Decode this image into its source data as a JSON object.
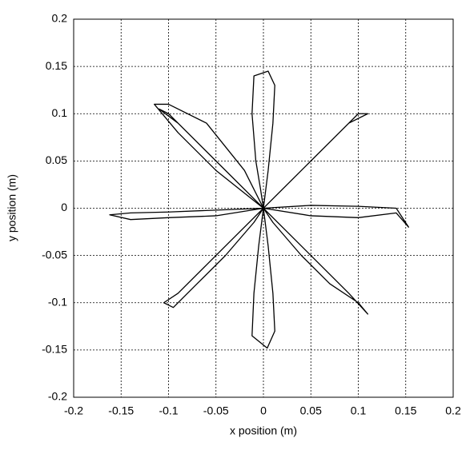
{
  "chart_data": {
    "type": "line",
    "xlabel": "x position (m)",
    "ylabel": "y position (m)",
    "xlim": [
      -0.2,
      0.2
    ],
    "ylim": [
      -0.2,
      0.2
    ],
    "xticks": [
      -0.2,
      -0.15,
      -0.1,
      -0.05,
      0,
      0.05,
      0.1,
      0.15,
      0.2
    ],
    "yticks": [
      -0.2,
      -0.15,
      -0.1,
      -0.05,
      0,
      0.05,
      0.1,
      0.15,
      0.2
    ],
    "grid": true,
    "series": [
      {
        "color": "#000000",
        "x": [
          0,
          0.005,
          0.01,
          0.012,
          0.005,
          -0.01,
          -0.012,
          -0.008,
          -0.003,
          0
        ],
        "values": [
          0,
          0.04,
          0.09,
          0.13,
          0.145,
          0.14,
          0.1,
          0.05,
          0.02,
          0
        ]
      },
      {
        "color": "#000000",
        "x": [
          0,
          0.03,
          0.06,
          0.09,
          0.11,
          0.1,
          0.08,
          0.05,
          0.02,
          0
        ],
        "values": [
          0,
          0.03,
          0.06,
          0.09,
          0.1,
          0.1,
          0.08,
          0.05,
          0.02,
          0
        ]
      },
      {
        "color": "#000000",
        "x": [
          0,
          0.05,
          0.1,
          0.14,
          0.153,
          0.14,
          0.1,
          0.05,
          0
        ],
        "values": [
          0,
          0.003,
          0.002,
          0,
          -0.02,
          -0.005,
          -0.01,
          -0.008,
          0
        ]
      },
      {
        "color": "#000000",
        "x": [
          0,
          0.03,
          0.06,
          0.09,
          0.11,
          0.1,
          0.07,
          0.04,
          0.01,
          0
        ],
        "values": [
          0,
          -0.03,
          -0.06,
          -0.09,
          -0.112,
          -0.1,
          -0.08,
          -0.05,
          -0.015,
          0
        ]
      },
      {
        "color": "#000000",
        "x": [
          0,
          0.005,
          0.01,
          0.012,
          0.004,
          -0.012,
          -0.01,
          -0.005,
          0
        ],
        "values": [
          0,
          -0.04,
          -0.09,
          -0.13,
          -0.148,
          -0.135,
          -0.09,
          -0.04,
          0
        ]
      },
      {
        "color": "#000000",
        "x": [
          0,
          -0.03,
          -0.06,
          -0.09,
          -0.105,
          -0.095,
          -0.07,
          -0.04,
          -0.01,
          0
        ],
        "values": [
          0,
          -0.03,
          -0.06,
          -0.09,
          -0.1,
          -0.105,
          -0.08,
          -0.05,
          -0.015,
          0
        ]
      },
      {
        "color": "#000000",
        "x": [
          0,
          -0.05,
          -0.1,
          -0.14,
          -0.162,
          -0.14,
          -0.1,
          -0.05,
          0
        ],
        "values": [
          0,
          -0.002,
          -0.004,
          -0.005,
          -0.007,
          -0.012,
          -0.01,
          -0.008,
          0
        ]
      },
      {
        "color": "#000000",
        "x": [
          0,
          -0.03,
          -0.06,
          -0.09,
          -0.11,
          -0.1,
          -0.08,
          -0.05,
          -0.02,
          0
        ],
        "values": [
          0,
          0.03,
          0.06,
          0.09,
          0.105,
          0.1,
          0.08,
          0.05,
          0.02,
          0
        ]
      },
      {
        "color": "#000000",
        "x": [
          0,
          -0.05,
          -0.09,
          -0.115,
          -0.1,
          -0.06,
          -0.02,
          0
        ],
        "values": [
          0,
          0.04,
          0.08,
          0.11,
          0.11,
          0.09,
          0.04,
          0
        ]
      }
    ]
  }
}
